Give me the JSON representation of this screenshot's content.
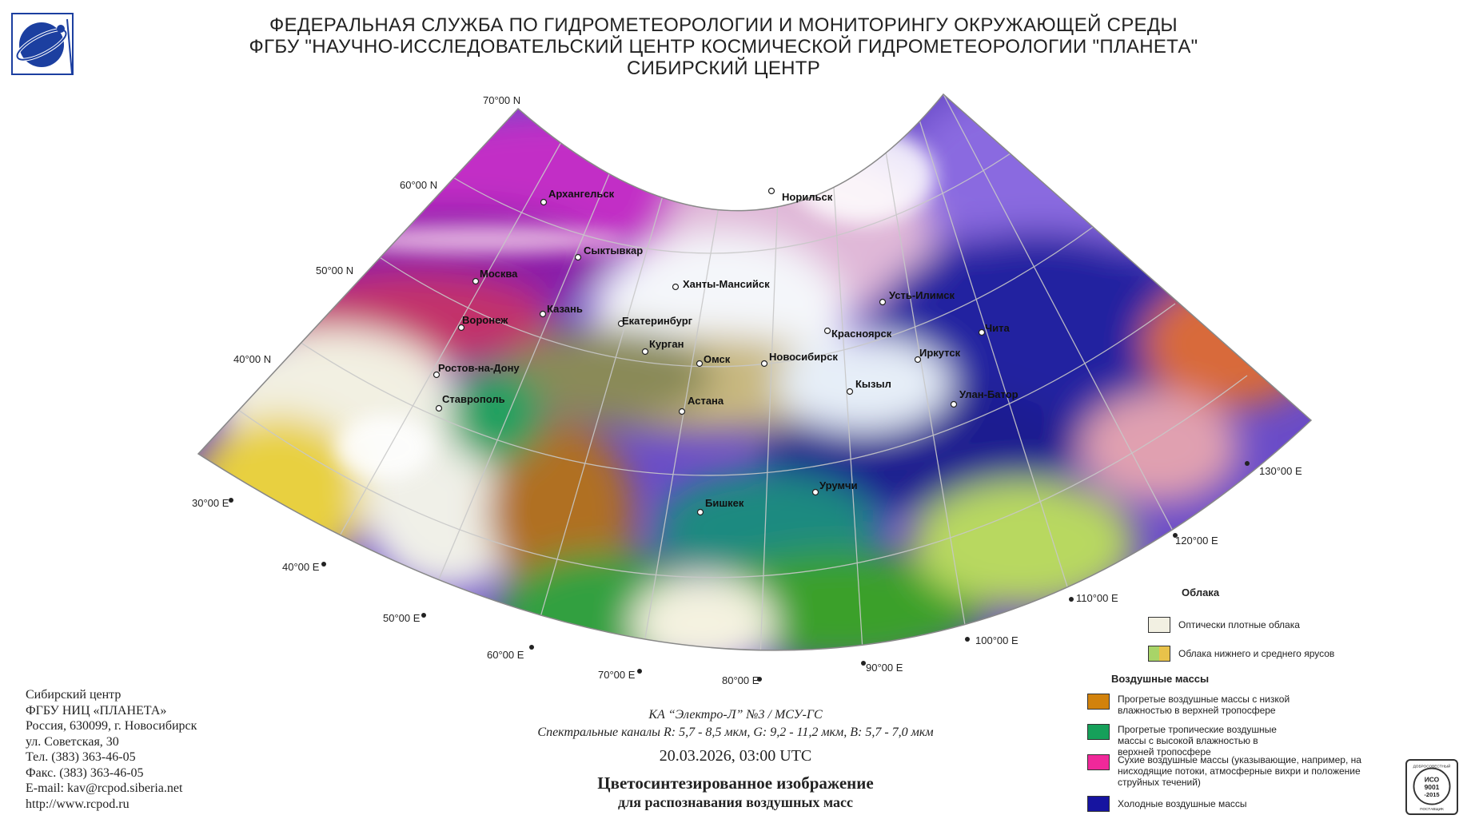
{
  "header": {
    "line1": "ФЕДЕРАЛЬНАЯ СЛУЖБА ПО ГИДРОМЕТЕОРОЛОГИИ И МОНИТОРИНГУ ОКРУЖАЮЩЕЙ СРЕДЫ",
    "line2": "ФГБУ \"НАУЧНО-ИССЛЕДОВАТЕЛЬСКИЙ ЦЕНТР КОСМИЧЕСКОЙ ГИДРОМЕТЕОРОЛОГИИ \"ПЛАНЕТА\"",
    "line3": "СИБИРСКИЙ ЦЕНТР"
  },
  "latitudes": [
    "70°00 N",
    "60°00 N",
    "50°00 N",
    "40°00 N"
  ],
  "longitudes": [
    "30°00 E",
    "40°00 E",
    "50°00 E",
    "60°00 E",
    "70°00 E",
    "80°00 E",
    "90°00 E",
    "100°00 E",
    "110°00 E",
    "120°00 E",
    "130°00 E"
  ],
  "cities": [
    "Архангельск",
    "Норильск",
    "Сыктывкар",
    "Москва",
    "Ханты-Мансийск",
    "Усть-Илимск",
    "Казань",
    "Воронеж",
    "Екатеринбург",
    "Красноярск",
    "Чита",
    "Курган",
    "Омск",
    "Новосибирск",
    "Иркутск",
    "Ростов-на-Дону",
    "Кызыл",
    "Улан-Батор",
    "Ставрополь",
    "Астана",
    "Урумчи",
    "Бишкек"
  ],
  "contact": {
    "line1": "Сибирский центр",
    "line2": "ФГБУ НИЦ «ПЛАНЕТА»",
    "line3": "Россия, 630099, г. Новосибирск",
    "line4": "ул. Советская, 30",
    "line5": "Тел. (383) 363-46-05",
    "line6": "Факс. (383) 363-46-05",
    "line7": "E-mail: kav@rcpod.siberia.net",
    "line8": "http://www.rcpod.ru"
  },
  "caption": {
    "satellite": "КА “Электро-Л” №3 / МСУ-ГС",
    "channels": "Спектральные каналы R: 5,7 - 8,5 мкм, G: 9,2 - 11,2 мкм, B: 5,7 - 7,0 мкм",
    "datetime": "20.03.2026, 03:00 UTC",
    "title": "Цветосинтезированное изображение",
    "subtitle": "для распознавания воздушных масс"
  },
  "legend": {
    "clouds_title": "Облака",
    "cloud_items": [
      {
        "label": "Оптически плотные облака",
        "color": "#f2f0e2"
      },
      {
        "label": "Облака нижнего и среднего ярусов",
        "color": "#a8d468",
        "color2": "#e8c24a"
      }
    ],
    "air_title": "Воздушные массы",
    "air_items": [
      {
        "label": "Прогретые воздушные массы с низкой влажностью в верхней тропосфере",
        "color": "#d2820c"
      },
      {
        "label": "Прогретые тропичеcкие воздушные массы с высокой влажностью в верхней тропосфере",
        "color": "#16a05a"
      },
      {
        "label": "Сухие воздушные массы (указывающие, например, на нисходящие потоки, атмосферные вихри и положение струйных течений)",
        "color": "#f0289a"
      },
      {
        "label": "Холодные воздушные массы",
        "color": "#1614a0"
      }
    ]
  },
  "iso": {
    "line1": "ДОБРОСОВЕСТНЫЙ",
    "line2": "ИСО",
    "line3": "9001",
    "line4": "-2015",
    "line5": "ПОСТАВЩИК"
  }
}
